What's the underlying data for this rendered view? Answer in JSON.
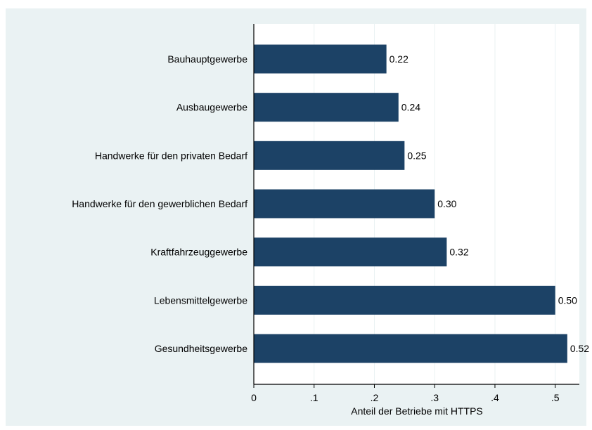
{
  "chart_data": {
    "type": "bar",
    "orientation": "horizontal",
    "categories": [
      "Bauhauptgewerbe",
      "Ausbaugewerbe",
      "Handwerke für den privaten Bedarf",
      "Handwerke für den gewerblichen Bedarf",
      "Kraftfahrzeuggewerbe",
      "Lebensmittelgewerbe",
      "Gesundheitsgewerbe"
    ],
    "values": [
      0.22,
      0.24,
      0.25,
      0.3,
      0.32,
      0.5,
      0.52
    ],
    "value_labels": [
      "0.22",
      "0.24",
      "0.25",
      "0.30",
      "0.32",
      "0.50",
      "0.52"
    ],
    "title": "",
    "xlabel": "Anteil der Betriebe mit HTTPS",
    "ylabel": "",
    "xlim": [
      0,
      0.54
    ],
    "xticks": [
      0,
      0.1,
      0.2,
      0.3,
      0.4,
      0.5
    ],
    "xtick_labels": [
      "0",
      ".1",
      ".2",
      ".3",
      ".4",
      ".5"
    ],
    "grid": "vertical",
    "legend": "none",
    "colors": {
      "bar": "#1c4266",
      "outer_background": "#eaf2f3",
      "plot_background": "#ffffff",
      "grid": "#eaf2f3",
      "axis": "#000000",
      "text": "#000000"
    }
  }
}
